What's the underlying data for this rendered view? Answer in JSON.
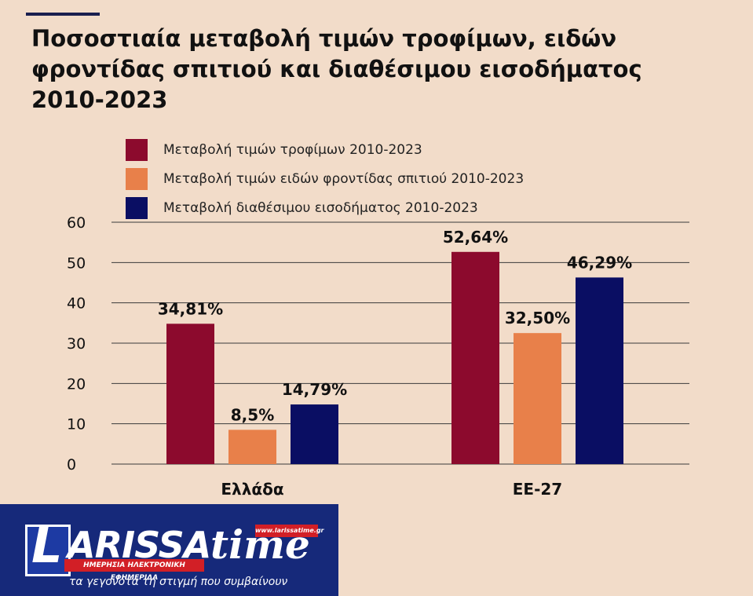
{
  "title": "Ποσοστιαία μεταβολή τιμών τροφίμων, ειδών φροντίδας σπιτιού και διαθέσιμου εισοδήματος 2010-2023",
  "colors": {
    "background": "#f2dcc9",
    "food": "#8c0a2d",
    "household": "#e8804a",
    "income": "#0a0e63"
  },
  "chart_data": {
    "type": "bar",
    "title": "Ποσοστιαία μεταβολή τιμών τροφίμων, ειδών φροντίδας σπιτιού και διαθέσιμου εισοδήματος 2010-2023",
    "categories": [
      "Ελλάδα",
      "ΕΕ-27"
    ],
    "series": [
      {
        "name": "Μεταβολή τιμών τροφίμων 2010-2023",
        "values": [
          34.81,
          52.64
        ],
        "labels": [
          "34,81%",
          "52,64%"
        ],
        "color": "#8c0a2d"
      },
      {
        "name": "Μεταβολή τιμών ειδών φροντίδας σπιτιού 2010-2023",
        "values": [
          8.5,
          32.5
        ],
        "labels": [
          "8,5%",
          "32,50%"
        ],
        "color": "#e8804a"
      },
      {
        "name": "Μεταβολή διαθέσιμου εισοδήματος 2010-2023",
        "values": [
          14.79,
          46.29
        ],
        "labels": [
          "14,79%",
          "46,29%"
        ],
        "color": "#0a0e63"
      }
    ],
    "ylim": [
      0,
      60
    ],
    "yticks": [
      "0",
      "10",
      "20",
      "30",
      "40",
      "50",
      "60"
    ],
    "grid": true,
    "legend": "top-left",
    "xlabel": "",
    "ylabel": ""
  },
  "logo": {
    "letter": "L",
    "name": "ARISSA",
    "time": "time",
    "url": "www.larissatime.gr",
    "subtitle": "ΗΜΕΡΗΣΙΑ ΗΛΕΚΤΡΟΝΙΚΗ ΕΦΗΜΕΡΙΔΑ",
    "tagline": "τα γεγονότα τη στιγμή που συμβαίνουν",
    "colors": {
      "background": "#16297a",
      "accent": "#d21f26"
    }
  }
}
